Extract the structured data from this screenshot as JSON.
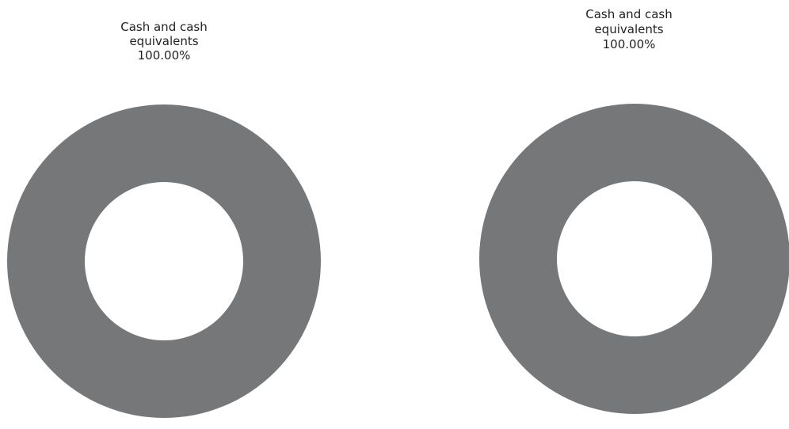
{
  "chart_data": [
    {
      "type": "pie",
      "variant": "donut",
      "slices": [
        {
          "label_lines": [
            "Cash and cash",
            "equivalents"
          ],
          "value_text": "100.00%",
          "value": 100.0,
          "color": "#767778"
        }
      ]
    },
    {
      "type": "pie",
      "variant": "donut",
      "slices": [
        {
          "label_lines": [
            "Cash and cash",
            "equivalents"
          ],
          "value_text": "100.00%",
          "value": 100.0,
          "color": "#767778"
        }
      ]
    }
  ]
}
